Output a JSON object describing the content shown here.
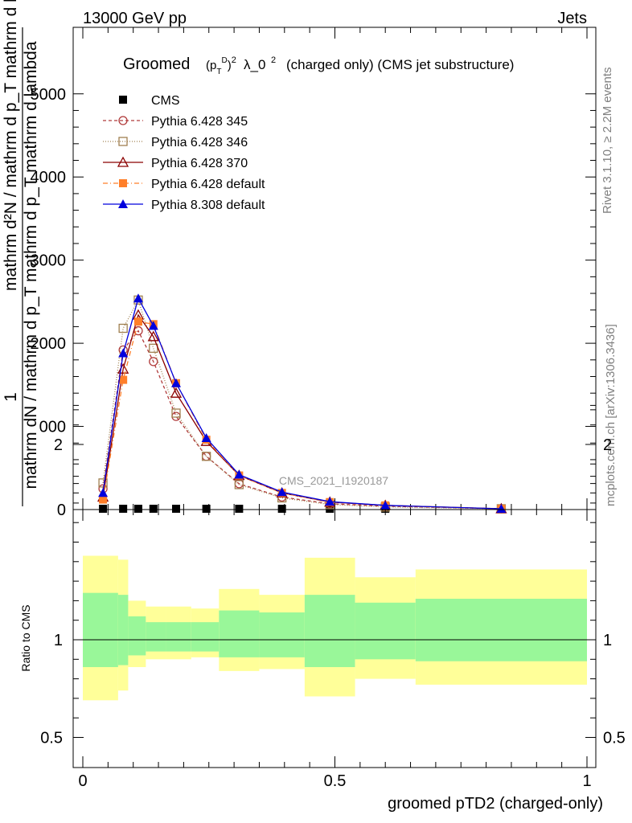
{
  "header": {
    "left": "13000 GeV pp",
    "right": "Jets"
  },
  "side_labels": {
    "rivet": "Rivet 3.1.10, ≥ 2.2M events",
    "mcplots": "mcplots.cern.ch [arXiv:1306.3436]"
  },
  "chart_data": [
    {
      "type": "line",
      "panel": "main",
      "title_prefix": "Groomed",
      "title_suffix": "λ_0",
      "title_note": "(charged only) (CMS jet substructure)",
      "xlabel": "",
      "ylabel_numerator_1": "1",
      "ylabel_numerator_2": "mathrm d N",
      "ylabel_main": "mathrm dN / mathrm d p_T mathrm d p_T mathrm d lambda",
      "ylabel_overlay": "mathrm d²N / mathrm d p_T mathrm d lambda",
      "watermark": "CMS_2021_I1920187",
      "xlim": [
        0,
        1
      ],
      "ylim": [
        0,
        5800
      ],
      "y_ticks": [
        0,
        1000,
        2000,
        3000,
        4000,
        5000
      ],
      "y_tick_labels": [
        "0",
        "1000",
        "2000",
        "3000",
        "4000",
        "5000"
      ],
      "y_tick_visible": [
        "0",
        "000",
        "2000",
        "3000",
        "4000",
        "5000"
      ],
      "legend_position": "top-left",
      "x": [
        0.04,
        0.08,
        0.11,
        0.14,
        0.185,
        0.245,
        0.31,
        0.395,
        0.49,
        0.6,
        0.83
      ],
      "series": [
        {
          "name": "CMS",
          "color": "#000000",
          "marker": "square-filled",
          "values": [
            0,
            0,
            0,
            0,
            0,
            0,
            0,
            0,
            0,
            0,
            0
          ]
        },
        {
          "name": "Pythia 6.428 345",
          "color": "#b03a3a",
          "marker": "circle-open",
          "dash": "4,3",
          "values": [
            250,
            1920,
            2150,
            1780,
            1120,
            640,
            310,
            150,
            70,
            40,
            10
          ]
        },
        {
          "name": "Pythia 6.428 346",
          "color": "#a08050",
          "marker": "square-open",
          "dash": "1,2",
          "values": [
            320,
            2180,
            2520,
            1940,
            1160,
            640,
            300,
            140,
            60,
            30,
            10
          ]
        },
        {
          "name": "Pythia 6.428 370",
          "color": "#8b0000",
          "marker": "triangle-open",
          "dash": "",
          "values": [
            150,
            1690,
            2340,
            2080,
            1400,
            820,
            410,
            200,
            90,
            50,
            10
          ]
        },
        {
          "name": "Pythia 6.428 default",
          "color": "#ff7f2a",
          "marker": "square-filled",
          "dash": "6,3,1,3",
          "values": [
            120,
            1560,
            2260,
            2230,
            1520,
            840,
            410,
            200,
            90,
            50,
            10
          ]
        },
        {
          "name": "Pythia 8.308 default",
          "color": "#0000dd",
          "marker": "triangle-filled",
          "dash": "",
          "values": [
            200,
            1880,
            2540,
            2210,
            1520,
            860,
            420,
            210,
            95,
            50,
            10
          ]
        }
      ]
    },
    {
      "type": "area",
      "panel": "ratio",
      "ylabel": "Ratio to CMS",
      "xlabel": "groomed pTD2 (charged-only)",
      "xlim": [
        0,
        1
      ],
      "ylim": [
        0.35,
        2.3
      ],
      "x_ticks": [
        0,
        0.5,
        1
      ],
      "x_tick_labels": [
        "0",
        "0.5",
        "1"
      ],
      "y_ticks": [
        0.5,
        1,
        2
      ],
      "y_tick_labels": [
        "0.5",
        "1",
        "2"
      ],
      "reference_line": 1,
      "bins": [
        0,
        0.07,
        0.09,
        0.125,
        0.165,
        0.215,
        0.27,
        0.35,
        0.44,
        0.54,
        0.66,
        1.0
      ],
      "yellow_low": [
        0.69,
        0.74,
        0.86,
        0.9,
        0.9,
        0.91,
        0.84,
        0.85,
        0.71,
        0.8,
        0.77
      ],
      "yellow_high": [
        1.43,
        1.41,
        1.2,
        1.17,
        1.17,
        1.16,
        1.26,
        1.23,
        1.42,
        1.32,
        1.36
      ],
      "green_low": [
        0.86,
        0.87,
        0.92,
        0.94,
        0.94,
        0.94,
        0.91,
        0.91,
        0.86,
        0.9,
        0.89
      ],
      "green_high": [
        1.24,
        1.23,
        1.12,
        1.09,
        1.09,
        1.09,
        1.15,
        1.14,
        1.23,
        1.19,
        1.21
      ],
      "green_color": "#99f799",
      "yellow_color": "#ffff99"
    }
  ]
}
